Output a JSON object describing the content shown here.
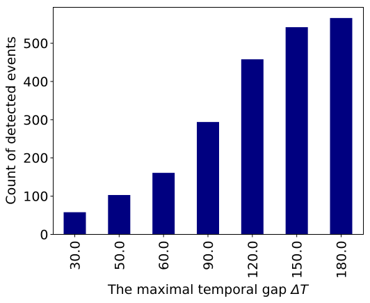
{
  "chart_data": {
    "type": "bar",
    "categories": [
      "30.0",
      "50.0",
      "60.0",
      "90.0",
      "120.0",
      "150.0",
      "180.0"
    ],
    "values": [
      58,
      103,
      161,
      294,
      458,
      542,
      566
    ],
    "xlabel": "The maximal temporal gap ",
    "xlabel_symbol": "ΔT",
    "ylabel": "Count of detected events",
    "ylim": [
      0,
      594
    ],
    "yticks": [
      0,
      100,
      200,
      300,
      400,
      500
    ],
    "ytick_labels": [
      "0",
      "100",
      "200",
      "300",
      "400",
      "500"
    ],
    "bar_color": "#000080",
    "grid": false,
    "legend": "none",
    "x_tick_rotation": "vertical"
  }
}
